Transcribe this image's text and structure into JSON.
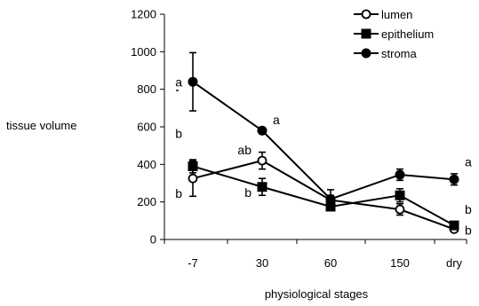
{
  "chart_data": {
    "type": "line",
    "title": "",
    "xlabel": "physiological stages",
    "ylabel": "tissue volume",
    "categories": [
      "-7",
      "30",
      "60",
      "150",
      "dry"
    ],
    "ylim": [
      0,
      1200
    ],
    "yticks": [
      0,
      200,
      400,
      600,
      800,
      1000,
      1200
    ],
    "grid": false,
    "legend_position": "top-right",
    "series": [
      {
        "name": "lumen",
        "marker": "open-circle",
        "values": [
          325,
          420,
          210,
          160,
          55
        ],
        "errors": [
          95,
          45,
          25,
          30,
          10
        ]
      },
      {
        "name": "epithelium",
        "marker": "filled-square",
        "values": [
          390,
          280,
          175,
          235,
          75
        ],
        "errors": [
          35,
          45,
          20,
          35,
          10
        ]
      },
      {
        "name": "stroma",
        "marker": "filled-circle",
        "values": [
          840,
          580,
          215,
          345,
          320
        ],
        "errors": [
          155,
          15,
          50,
          30,
          30
        ]
      }
    ],
    "annotations": [
      {
        "text": "a",
        "category": "-7",
        "y": 838,
        "position": "left"
      },
      {
        "text": "b",
        "category": "-7",
        "y": 565,
        "position": "left"
      },
      {
        "text": "b",
        "category": "-7",
        "y": 245,
        "position": "left"
      },
      {
        "text": "a",
        "category": "30",
        "y": 638,
        "position": "right"
      },
      {
        "text": "ab",
        "category": "30",
        "y": 478,
        "position": "left"
      },
      {
        "text": "b",
        "category": "30",
        "y": 250,
        "position": "left"
      },
      {
        "text": "a",
        "category": "dry",
        "y": 413,
        "position": "right"
      },
      {
        "text": "b",
        "category": "dry",
        "y": 160,
        "position": "right"
      },
      {
        "text": "b",
        "category": "dry",
        "y": 50,
        "position": "right"
      }
    ]
  }
}
